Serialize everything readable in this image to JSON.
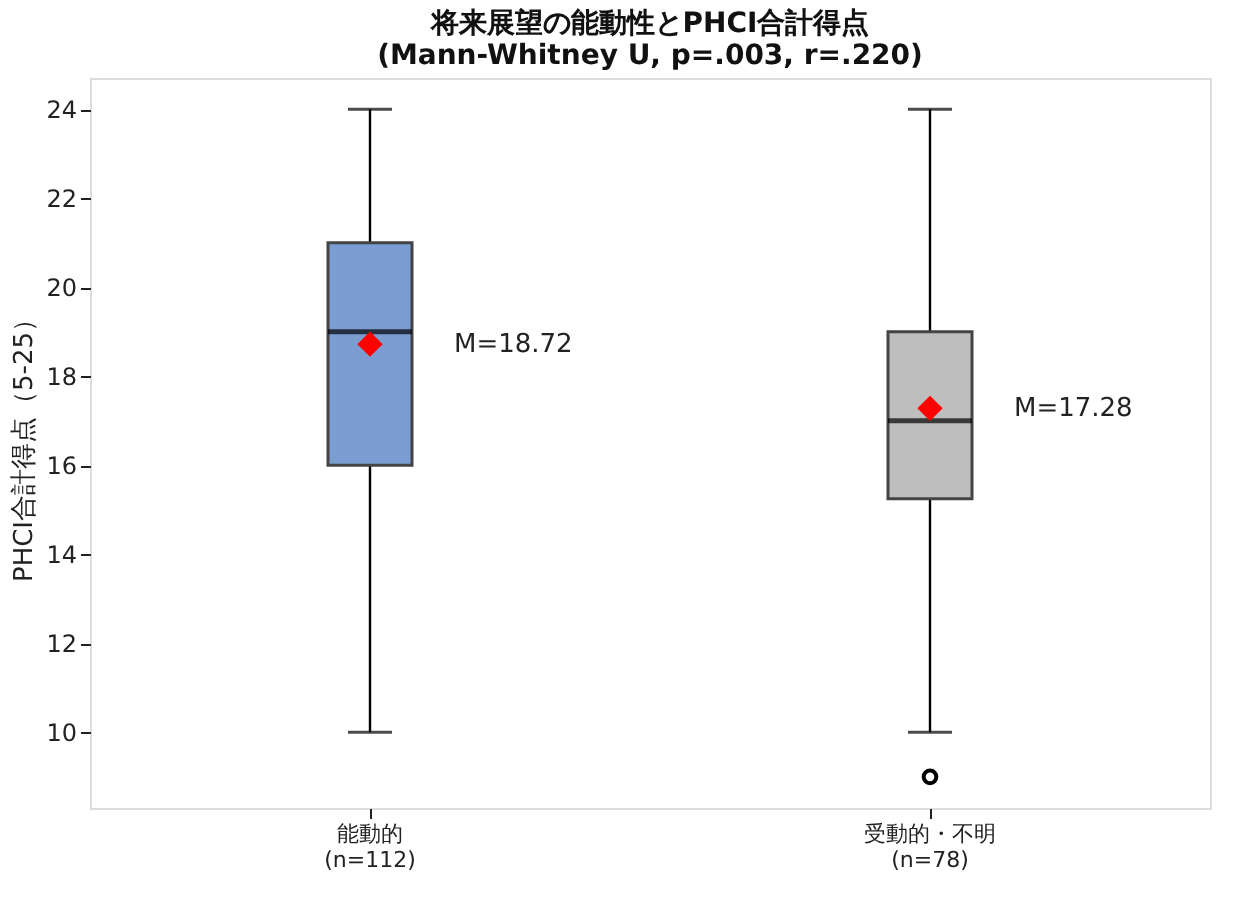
{
  "chart_data": {
    "type": "box",
    "title": "将来展望の能動性とPHCI合計得点\n(Mann-Whitney U, p=.003, r=.220)",
    "ylabel": "PHCI合計得点（5-25）",
    "categories": [
      "能動的\n(n=112)",
      "受動的・不明\n(n=78)"
    ],
    "colors": [
      "#7b9dd2",
      "#bebebe"
    ],
    "boxes": [
      {
        "low": 10,
        "q1": 16,
        "median": 19,
        "q3": 21,
        "high": 24,
        "mean": 18.72
      },
      {
        "low": 10,
        "q1": 15.25,
        "median": 17,
        "q3": 19,
        "high": 24,
        "mean": 17.28,
        "outliers": [
          9
        ]
      }
    ],
    "annotations": [
      "M=18.72",
      "M=17.28"
    ],
    "ylim": [
      8.3,
      24.7
    ],
    "yticks": [
      10,
      12,
      14,
      16,
      18,
      20,
      22,
      24
    ],
    "grid": false,
    "marker": "diamond"
  }
}
